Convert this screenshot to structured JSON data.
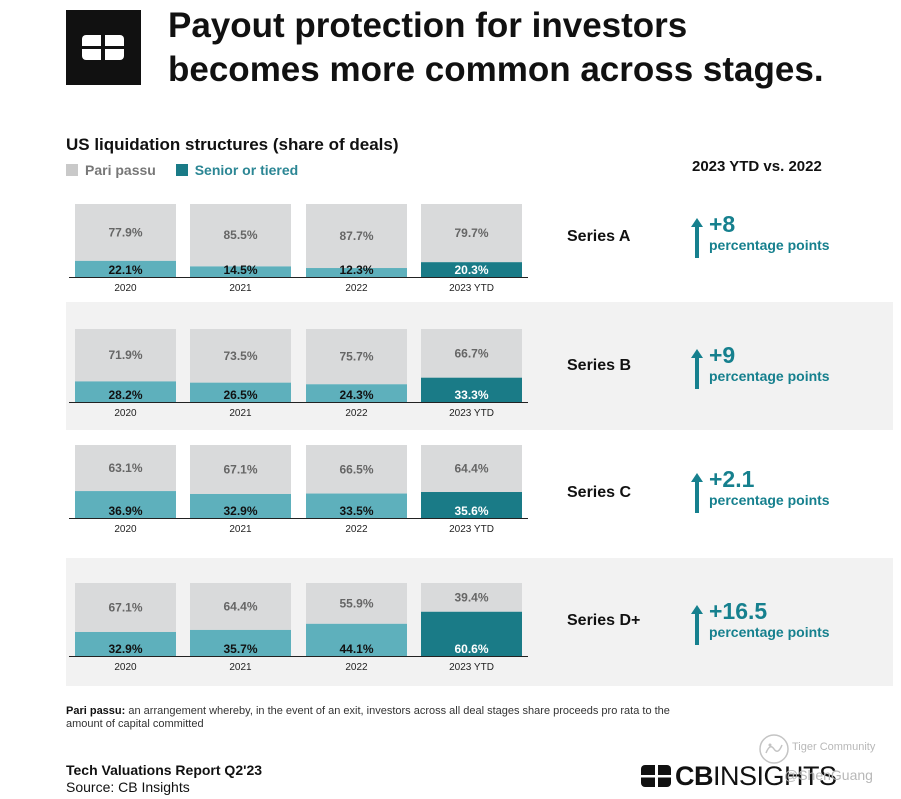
{
  "header": {
    "title_line1": "Payout protection for investors",
    "title_line2": "becomes more common across stages."
  },
  "chart_data": {
    "type": "bar",
    "title": "US liquidation structures (share of deals)",
    "categories": [
      "2020",
      "2021",
      "2022",
      "2023 YTD"
    ],
    "legend": [
      "Pari passu",
      "Senior or tiered"
    ],
    "colors": {
      "pari": "#d9dadb",
      "senior": "#5eb0bc",
      "senior_highlight": "#1a7b87",
      "band": "#f2f2f2",
      "delta": "#16808e"
    },
    "panels": [
      {
        "name": "Series A",
        "pari": [
          77.9,
          85.5,
          87.7,
          79.7
        ],
        "senior": [
          22.1,
          14.5,
          12.3,
          20.3
        ],
        "pari_labels": [
          "77.9%",
          "85.5%",
          "87.7%",
          "79.7%"
        ],
        "senior_labels": [
          "22.1%",
          "14.5%",
          "12.3%",
          "20.3%"
        ],
        "delta": "+8",
        "delta_unit": "percentage points"
      },
      {
        "name": "Series B",
        "pari": [
          71.9,
          73.5,
          75.7,
          66.7
        ],
        "senior": [
          28.2,
          26.5,
          24.3,
          33.3
        ],
        "pari_labels": [
          "71.9%",
          "73.5%",
          "75.7%",
          "66.7%"
        ],
        "senior_labels": [
          "28.2%",
          "26.5%",
          "24.3%",
          "33.3%"
        ],
        "delta": "+9",
        "delta_unit": "percentage points"
      },
      {
        "name": "Series C",
        "pari": [
          63.1,
          67.1,
          66.5,
          64.4
        ],
        "senior": [
          36.9,
          32.9,
          33.5,
          35.6
        ],
        "pari_labels": [
          "63.1%",
          "67.1%",
          "66.5%",
          "64.4%"
        ],
        "senior_labels": [
          "36.9%",
          "32.9%",
          "33.5%",
          "35.6%"
        ],
        "delta": "+2.1",
        "delta_unit": "percentage points"
      },
      {
        "name": "Series D+",
        "pari": [
          67.1,
          64.4,
          55.9,
          39.4
        ],
        "senior": [
          32.9,
          35.7,
          44.1,
          60.6
        ],
        "pari_labels": [
          "67.1%",
          "64.4%",
          "55.9%",
          "39.4%"
        ],
        "senior_labels": [
          "32.9%",
          "35.7%",
          "44.1%",
          "60.6%"
        ],
        "delta": "+16.5",
        "delta_unit": "percentage points"
      }
    ],
    "comparison_title": "2023 YTD vs. 2022",
    "highlight_category": "2023 YTD"
  },
  "footnote": {
    "term": "Pari passu:",
    "text": " an arrangement whereby, in the event of an exit, investors across all deal stages share proceeds pro rata to the amount of capital committed"
  },
  "footer": {
    "report": "Tech Valuations Report Q2'23",
    "source": "Source: CB Insights",
    "brand_bold": "CB",
    "brand_light": "INSIGHTS"
  },
  "watermark": {
    "line1": "Tiger Community",
    "line2": "@ShenGuang"
  },
  "icons": {
    "logo": "cb-logo-icon",
    "arrow": "arrow-up-icon",
    "watermark": "tiger-icon"
  }
}
